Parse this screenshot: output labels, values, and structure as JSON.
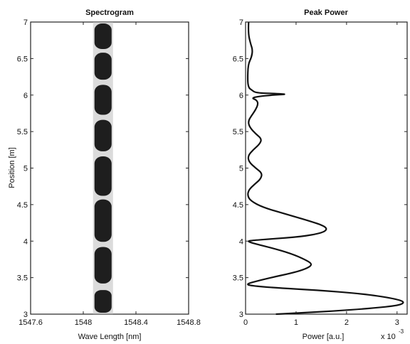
{
  "chart_data": [
    {
      "type": "heatmap",
      "title": "Spectrogram",
      "xlabel": "Wave Length [nm]",
      "ylabel": "Position [m]",
      "xlim": [
        1547.6,
        1548.8
      ],
      "ylim": [
        3,
        7
      ],
      "xticks": [
        "1547.6",
        "1548",
        "1548.4",
        "1548.8"
      ],
      "yticks": [
        "3",
        "3.5",
        "4",
        "4.5",
        "5",
        "5.5",
        "6",
        "6.5",
        "7"
      ],
      "band_center_nm": 1548.15,
      "band_width_nm": 0.13,
      "pulses": [
        {
          "y0": 3.02,
          "y1": 3.33
        },
        {
          "y0": 3.42,
          "y1": 3.92
        },
        {
          "y0": 3.99,
          "y1": 4.57
        },
        {
          "y0": 4.62,
          "y1": 5.16
        },
        {
          "y0": 5.23,
          "y1": 5.66
        },
        {
          "y0": 5.73,
          "y1": 6.14
        },
        {
          "y0": 6.21,
          "y1": 6.58
        },
        {
          "y0": 6.63,
          "y1": 6.98
        }
      ],
      "color": "#1e1e1e"
    },
    {
      "type": "line",
      "title": "Peak Power",
      "xlabel": "Power [a.u.]",
      "multiplier": "x 10",
      "multiplier_exp": "-3",
      "xlim": [
        0,
        3.2
      ],
      "ylim": [
        3,
        7
      ],
      "xticks": [
        "0",
        "1",
        "2",
        "3"
      ],
      "yticks": [
        "3",
        "3.5",
        "4",
        "4.5",
        "5",
        "5.5",
        "6",
        "6.5",
        "7"
      ],
      "series": [
        {
          "points": [
            [
              0.06,
              7.0
            ],
            [
              0.05,
              6.85
            ],
            [
              0.1,
              6.7
            ],
            [
              0.14,
              6.62
            ],
            [
              0.12,
              6.52
            ],
            [
              0.05,
              6.42
            ],
            [
              0.04,
              6.2
            ],
            [
              0.06,
              6.1
            ],
            [
              0.12,
              6.07
            ],
            [
              0.2,
              6.03
            ],
            [
              0.6,
              6.02
            ],
            [
              0.84,
              6.01
            ],
            [
              0.5,
              6.0
            ],
            [
              0.25,
              5.98
            ],
            [
              0.12,
              5.96
            ],
            [
              0.22,
              5.93
            ],
            [
              0.25,
              5.88
            ],
            [
              0.2,
              5.8
            ],
            [
              0.12,
              5.72
            ],
            [
              0.05,
              5.64
            ],
            [
              0.08,
              5.56
            ],
            [
              0.2,
              5.47
            ],
            [
              0.32,
              5.4
            ],
            [
              0.28,
              5.33
            ],
            [
              0.15,
              5.25
            ],
            [
              0.05,
              5.17
            ],
            [
              0.06,
              5.09
            ],
            [
              0.2,
              5.0
            ],
            [
              0.33,
              4.93
            ],
            [
              0.3,
              4.85
            ],
            [
              0.18,
              4.78
            ],
            [
              0.06,
              4.7
            ],
            [
              0.04,
              4.62
            ],
            [
              0.1,
              4.55
            ],
            [
              0.35,
              4.46
            ],
            [
              0.8,
              4.37
            ],
            [
              1.25,
              4.28
            ],
            [
              1.55,
              4.21
            ],
            [
              1.62,
              4.16
            ],
            [
              1.5,
              4.11
            ],
            [
              1.1,
              4.06
            ],
            [
              0.5,
              4.03
            ],
            [
              0.15,
              4.01
            ],
            [
              0.03,
              4.0
            ],
            [
              0.15,
              3.97
            ],
            [
              0.5,
              3.91
            ],
            [
              0.9,
              3.83
            ],
            [
              1.2,
              3.74
            ],
            [
              1.33,
              3.68
            ],
            [
              1.2,
              3.62
            ],
            [
              0.9,
              3.56
            ],
            [
              0.5,
              3.5
            ],
            [
              0.15,
              3.44
            ],
            [
              0.02,
              3.41
            ],
            [
              0.1,
              3.39
            ],
            [
              0.6,
              3.36
            ],
            [
              1.4,
              3.33
            ],
            [
              2.3,
              3.28
            ],
            [
              2.9,
              3.22
            ],
            [
              3.16,
              3.17
            ],
            [
              3.05,
              3.12
            ],
            [
              2.5,
              3.08
            ],
            [
              1.7,
              3.04
            ],
            [
              0.9,
              3.01
            ],
            [
              0.6,
              3.0
            ]
          ]
        }
      ],
      "color": "#111111"
    }
  ]
}
